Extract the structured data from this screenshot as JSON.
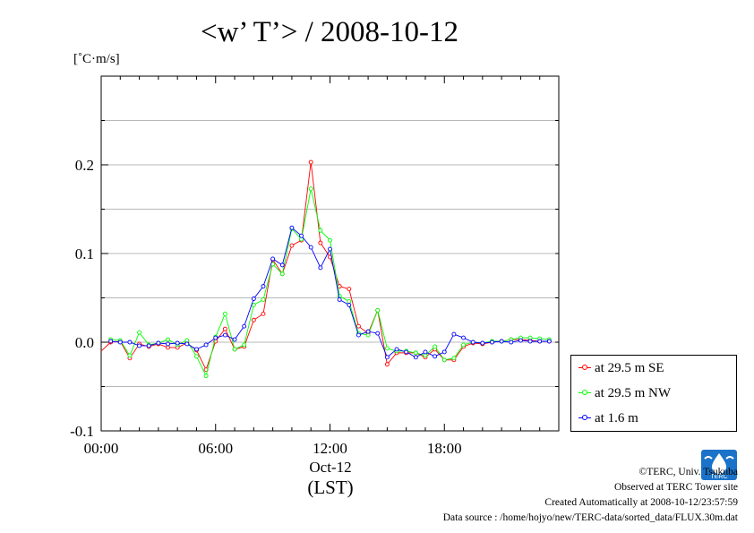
{
  "chart_data": {
    "type": "line",
    "title": "<w’ T’> / 2008-10-12",
    "ylabel": "[˚C·m/s]",
    "xlabel": "(LST)",
    "x_date_label": "Oct-12",
    "ylim": [
      -0.1,
      0.3
    ],
    "xlim": [
      0,
      24
    ],
    "y_ticks": [
      "-0.1",
      "0.0",
      "0.1",
      "0.2"
    ],
    "x_ticks": [
      "00:00",
      "06:00",
      "12:00",
      "18:00"
    ],
    "grid": true,
    "legend_position": "bottom-right, outside plot",
    "x": [
      0.5,
      1.0,
      1.5,
      2.0,
      2.5,
      3.0,
      3.5,
      4.0,
      4.5,
      5.0,
      5.5,
      6.0,
      6.5,
      7.0,
      7.5,
      8.0,
      8.5,
      9.0,
      9.5,
      10.0,
      10.5,
      11.0,
      11.5,
      12.0,
      12.5,
      13.0,
      13.5,
      14.0,
      14.5,
      15.0,
      15.5,
      16.0,
      16.5,
      17.0,
      17.5,
      18.0,
      18.5,
      19.0,
      19.5,
      20.0,
      20.5,
      21.0,
      21.5,
      22.0,
      22.5,
      23.0,
      23.5
    ],
    "series": [
      {
        "name": "at 29.5 m SE",
        "color": "#ff0000",
        "values": [
          0.0,
          0.001,
          -0.018,
          -0.002,
          -0.005,
          -0.002,
          -0.006,
          -0.006,
          -0.001,
          -0.009,
          -0.031,
          0.001,
          0.015,
          -0.008,
          -0.005,
          0.025,
          0.032,
          0.093,
          0.077,
          0.109,
          0.115,
          0.203,
          0.112,
          0.096,
          0.063,
          0.06,
          0.018,
          0.01,
          0.036,
          -0.025,
          -0.012,
          -0.012,
          -0.012,
          -0.017,
          -0.008,
          -0.02,
          -0.02,
          -0.005,
          -0.001,
          -0.002,
          0.0,
          0.001,
          0.003,
          0.003,
          0.002,
          0.001,
          0.001
        ]
      },
      {
        "name": "at 29.5 m NW",
        "color": "#00ff00",
        "values": [
          0.003,
          0.002,
          -0.015,
          0.011,
          -0.003,
          -0.001,
          0.003,
          -0.003,
          0.002,
          -0.016,
          -0.038,
          0.006,
          0.032,
          -0.008,
          -0.003,
          0.042,
          0.048,
          0.088,
          0.077,
          0.128,
          0.116,
          0.173,
          0.126,
          0.115,
          0.052,
          0.046,
          0.01,
          0.008,
          0.036,
          -0.007,
          -0.01,
          -0.01,
          -0.012,
          -0.015,
          -0.005,
          -0.02,
          -0.018,
          -0.003,
          0.0,
          -0.001,
          0.001,
          0.001,
          0.003,
          0.005,
          0.005,
          0.004,
          0.003
        ]
      },
      {
        "name": "at 1.6 m",
        "color": "#0000ff",
        "values": [
          0.001,
          0.0,
          0.0,
          -0.004,
          -0.004,
          -0.001,
          -0.002,
          -0.001,
          -0.002,
          -0.008,
          -0.003,
          0.005,
          0.008,
          0.003,
          0.018,
          0.049,
          0.063,
          0.094,
          0.087,
          0.129,
          0.12,
          0.107,
          0.084,
          0.105,
          0.048,
          0.042,
          0.008,
          0.012,
          0.01,
          -0.017,
          -0.008,
          -0.011,
          -0.017,
          -0.011,
          -0.016,
          -0.011,
          0.009,
          0.005,
          0.0,
          -0.001,
          0.0,
          0.001,
          0.0,
          0.002,
          0.001,
          0.001,
          0.001
        ]
      }
    ]
  },
  "footer": {
    "line1": "©TERC, Univ. Tsukuba",
    "line2": "Observed at TERC Tower site",
    "line3": "Created Automatically at 2008-10-12/23:57:59",
    "line4": "Data source : /home/hojyo/new/TERC-data/sorted_data/FLUX.30m.dat",
    "logo_text": "TERC"
  },
  "logo_color": "#1a73c8"
}
